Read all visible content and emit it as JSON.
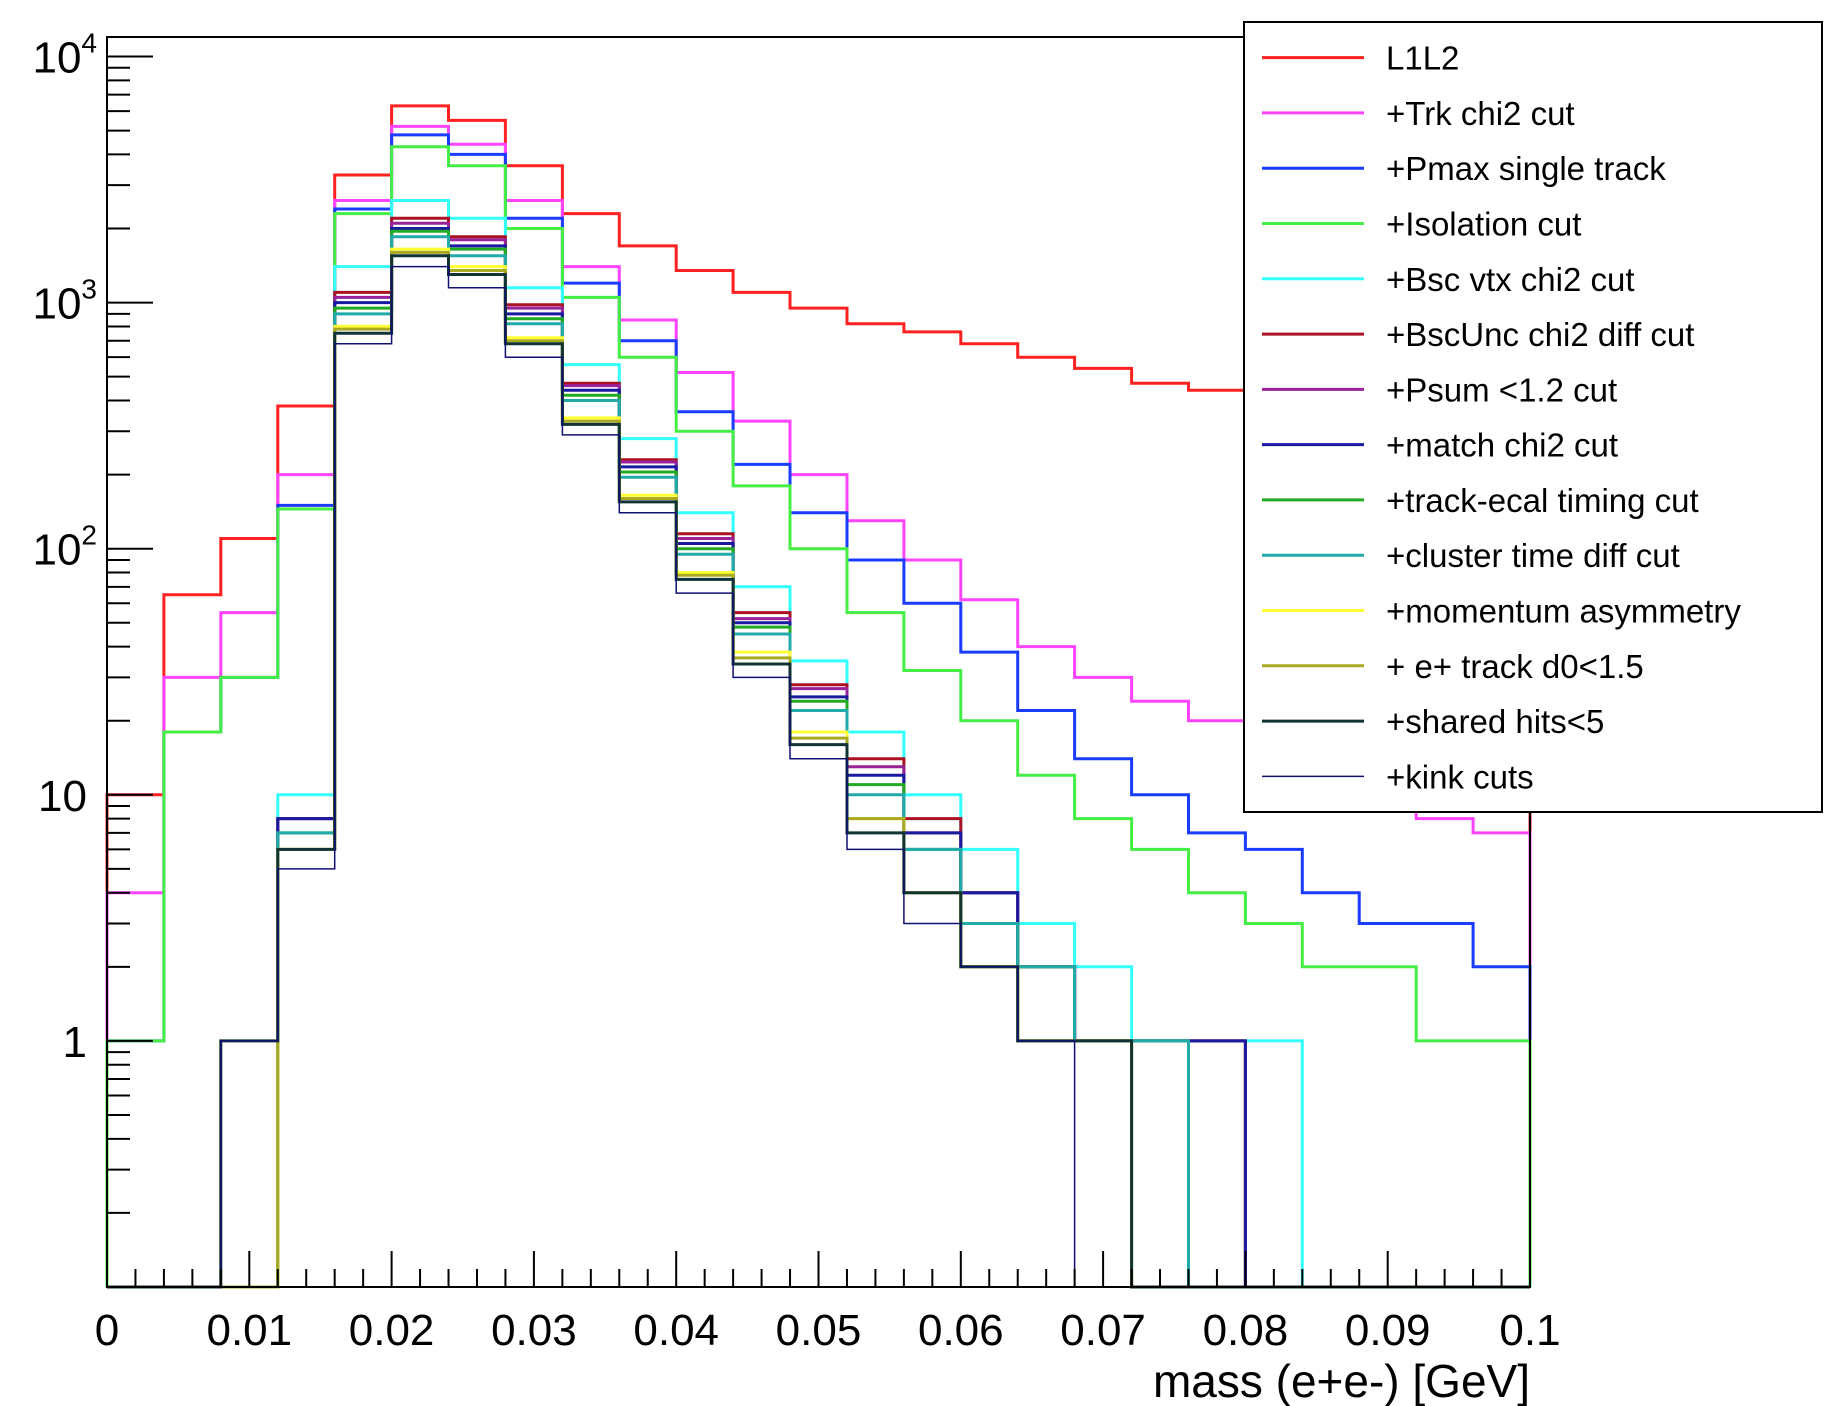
{
  "chart_data": {
    "type": "line",
    "style": "step-histogram",
    "title": "",
    "xlabel": "mass (e+e-) [GeV]",
    "ylabel": "",
    "xlim": [
      0,
      0.1
    ],
    "ylim": [
      0.1,
      12000
    ],
    "y_scale": "log",
    "grid": false,
    "legend_position": "top-right",
    "x_ticks": [
      "0",
      "0.01",
      "0.02",
      "0.03",
      "0.04",
      "0.05",
      "0.06",
      "0.07",
      "0.08",
      "0.09",
      "0.1"
    ],
    "y_ticks": [
      {
        "value": 1,
        "base": "1",
        "exp": ""
      },
      {
        "value": 10,
        "base": "10",
        "exp": ""
      },
      {
        "value": 100,
        "base": "10",
        "exp": "2"
      },
      {
        "value": 1000,
        "base": "10",
        "exp": "3"
      },
      {
        "value": 10000,
        "base": "10",
        "exp": "4"
      }
    ],
    "x": [
      0.002,
      0.006,
      0.01,
      0.014,
      0.018,
      0.022,
      0.026,
      0.03,
      0.034,
      0.038,
      0.042,
      0.046,
      0.05,
      0.054,
      0.058,
      0.062,
      0.066,
      0.07,
      0.074,
      0.078,
      0.082,
      0.086,
      0.09,
      0.094,
      0.098
    ],
    "series": [
      {
        "name": "L1L2",
        "color": "#ff2020",
        "width": 3,
        "values": [
          10,
          65,
          110,
          380,
          3300,
          6300,
          5500,
          3600,
          2300,
          1700,
          1350,
          1100,
          950,
          820,
          760,
          680,
          600,
          540,
          470,
          440,
          400,
          380,
          330,
          300,
          280
        ]
      },
      {
        "name": "+Trk chi2 cut",
        "color": "#ff44ff",
        "width": 3,
        "values": [
          4,
          30,
          55,
          200,
          2600,
          5200,
          4400,
          2600,
          1400,
          850,
          520,
          330,
          200,
          130,
          90,
          62,
          40,
          30,
          24,
          20,
          16,
          12,
          10,
          8,
          7
        ]
      },
      {
        "name": "+Pmax single track",
        "color": "#1a3cff",
        "width": 3,
        "values": [
          1,
          18,
          30,
          150,
          2400,
          4800,
          4000,
          2200,
          1200,
          700,
          360,
          220,
          140,
          90,
          60,
          38,
          22,
          14,
          10,
          7,
          6,
          4,
          3,
          3,
          2
        ]
      },
      {
        "name": "+Isolation cut",
        "color": "#44ee44",
        "width": 3,
        "values": [
          1,
          18,
          30,
          145,
          2300,
          4300,
          3600,
          2000,
          1050,
          600,
          300,
          180,
          100,
          55,
          32,
          20,
          12,
          8,
          6,
          4,
          3,
          2,
          2,
          1,
          1
        ]
      },
      {
        "name": "+Bsc vtx chi2 cut",
        "color": "#33ffff",
        "width": 3,
        "values": [
          0,
          0,
          0,
          10,
          1400,
          2600,
          2200,
          1150,
          560,
          280,
          140,
          70,
          35,
          18,
          10,
          6,
          3,
          2,
          1,
          1,
          1,
          0,
          0,
          0,
          0
        ]
      },
      {
        "name": "+BscUnc chi2 diff cut",
        "color": "#aa1122",
        "width": 3,
        "values": [
          0,
          0,
          0,
          8,
          1100,
          2200,
          1850,
          980,
          470,
          230,
          115,
          55,
          28,
          14,
          8,
          4,
          2,
          1,
          1,
          1,
          0,
          0,
          0,
          0,
          0
        ]
      },
      {
        "name": "+Psum <1.2 cut",
        "color": "#992299",
        "width": 3,
        "values": [
          0,
          0,
          0,
          8,
          1050,
          2100,
          1800,
          950,
          460,
          225,
          110,
          52,
          27,
          13,
          7,
          4,
          2,
          1,
          1,
          1,
          0,
          0,
          0,
          0,
          0
        ]
      },
      {
        "name": "+match chi2 cut",
        "color": "#1a1aa0",
        "width": 3,
        "values": [
          0,
          0,
          0,
          8,
          1000,
          2000,
          1700,
          900,
          440,
          215,
          105,
          50,
          25,
          12,
          7,
          4,
          2,
          1,
          1,
          1,
          0,
          0,
          0,
          0,
          0
        ]
      },
      {
        "name": "+track-ecal timing cut",
        "color": "#22aa22",
        "width": 3,
        "values": [
          0,
          0,
          0,
          7,
          950,
          1950,
          1650,
          860,
          420,
          205,
          100,
          48,
          24,
          11,
          6,
          3,
          2,
          1,
          1,
          0,
          0,
          0,
          0,
          0,
          0
        ]
      },
      {
        "name": "+cluster time diff cut",
        "color": "#22aaaa",
        "width": 3,
        "values": [
          0,
          0,
          0,
          7,
          900,
          1850,
          1550,
          820,
          400,
          195,
          95,
          45,
          22,
          10,
          6,
          3,
          2,
          1,
          1,
          0,
          0,
          0,
          0,
          0,
          0
        ]
      },
      {
        "name": "+momentum asymmetry",
        "color": "#ffff33",
        "width": 3,
        "values": [
          0,
          0,
          0,
          6,
          800,
          1650,
          1400,
          720,
          340,
          165,
          80,
          38,
          18,
          8,
          4,
          2,
          1,
          1,
          0,
          0,
          0,
          0,
          0,
          0,
          0
        ]
      },
      {
        "name": "+ e+ track d0<1.5",
        "color": "#aaaa22",
        "width": 3,
        "values": [
          0,
          0,
          0,
          6,
          780,
          1600,
          1350,
          700,
          330,
          160,
          78,
          36,
          17,
          8,
          4,
          2,
          1,
          1,
          0,
          0,
          0,
          0,
          0,
          0,
          0
        ]
      },
      {
        "name": "+shared hits<5",
        "color": "#113333",
        "width": 3,
        "values": [
          0,
          0,
          1,
          6,
          750,
          1550,
          1300,
          680,
          320,
          155,
          75,
          34,
          16,
          7,
          4,
          2,
          1,
          1,
          0,
          0,
          0,
          0,
          0,
          0,
          0
        ]
      },
      {
        "name": "+kink cuts",
        "color": "#101070",
        "width": 1.5,
        "values": [
          0,
          0,
          1,
          5,
          680,
          1400,
          1150,
          600,
          290,
          140,
          66,
          30,
          14,
          6,
          3,
          2,
          1,
          0,
          0,
          0,
          0,
          0,
          0,
          0,
          0
        ]
      }
    ]
  }
}
